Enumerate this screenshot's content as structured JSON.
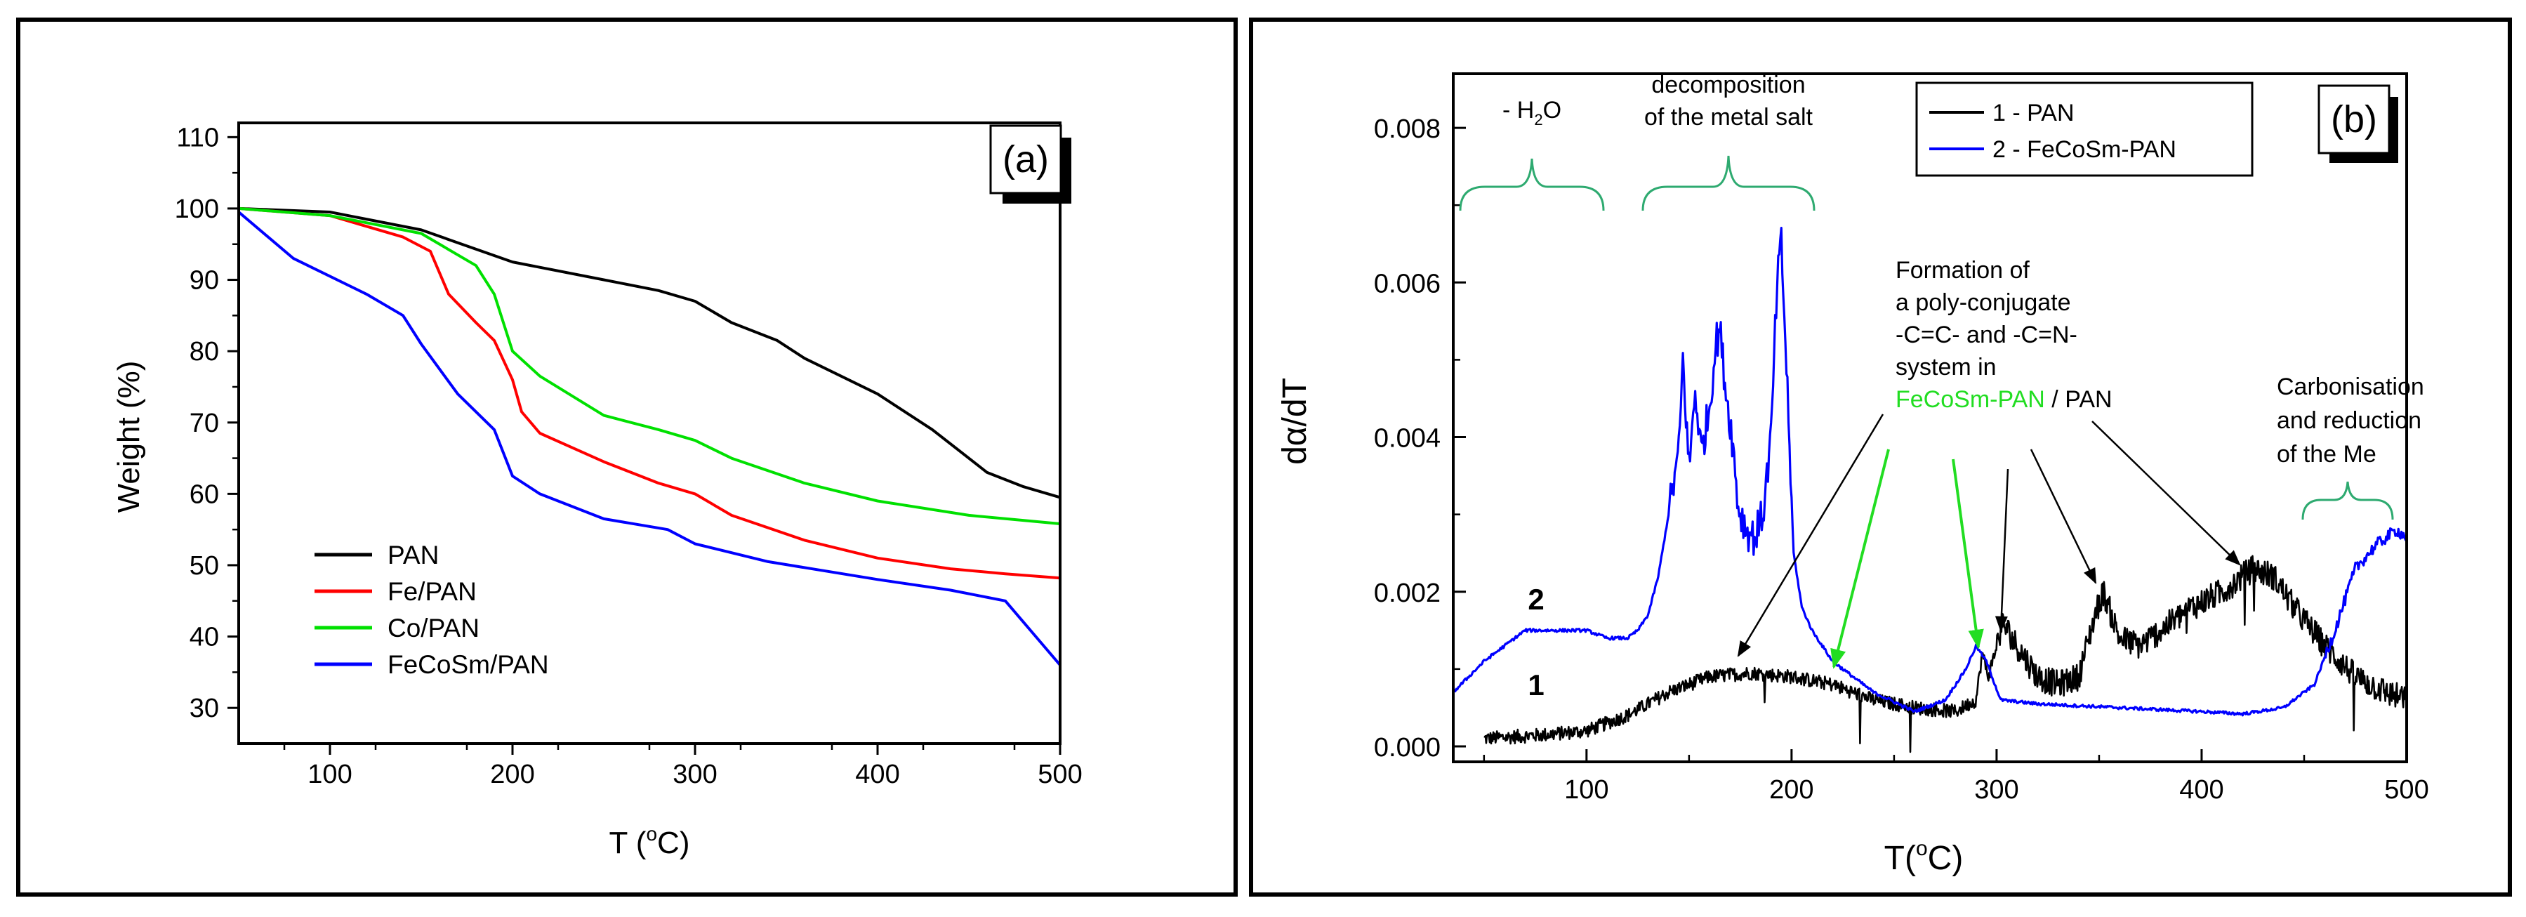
{
  "chart_data": [
    {
      "panel_label": "(a)",
      "type": "line",
      "xlabel": "T (",
      "xlabel_sup": "o",
      "xlabel_tail": "C)",
      "ylabel": "Weight (%)",
      "xlim": [
        50,
        500
      ],
      "ylim": [
        25,
        112
      ],
      "xticks": [
        "100",
        "200",
        "300",
        "400",
        "500"
      ],
      "yticks": [
        "30",
        "40",
        "50",
        "60",
        "70",
        "80",
        "90",
        "100",
        "110"
      ],
      "legend_position": "bottom-left",
      "series": [
        {
          "name": "PAN",
          "color": "#000000",
          "x": [
            50,
            100,
            150,
            200,
            250,
            280,
            300,
            320,
            345,
            360,
            400,
            430,
            460,
            480,
            500
          ],
          "y": [
            100,
            99.5,
            97,
            92.5,
            90,
            88.5,
            87,
            84,
            81.5,
            79,
            74,
            69,
            63,
            61,
            59.5
          ]
        },
        {
          "name": "Fe/PAN",
          "color": "#ff0000",
          "x": [
            50,
            100,
            140,
            155,
            165,
            180,
            190,
            200,
            205,
            215,
            250,
            280,
            300,
            320,
            360,
            400,
            440,
            470,
            500
          ],
          "y": [
            100,
            99,
            96,
            94,
            88,
            84,
            81.5,
            76,
            71.5,
            68.5,
            64.5,
            61.5,
            60,
            57,
            53.5,
            51,
            49.5,
            48.8,
            48.2
          ]
        },
        {
          "name": "Co/PAN",
          "color": "#00e000",
          "x": [
            50,
            100,
            150,
            180,
            190,
            200,
            215,
            250,
            280,
            300,
            320,
            360,
            400,
            450,
            500
          ],
          "y": [
            100,
            99,
            96.5,
            92,
            88,
            80,
            76.5,
            71,
            69,
            67.5,
            65,
            61.5,
            59,
            57,
            55.8
          ]
        },
        {
          "name": "FeCoSm/PAN",
          "color": "#0000ff",
          "x": [
            50,
            80,
            120,
            140,
            150,
            170,
            190,
            200,
            215,
            250,
            285,
            300,
            340,
            400,
            440,
            470,
            485,
            500
          ],
          "y": [
            99.5,
            93,
            88,
            85,
            81,
            74,
            69,
            62.5,
            60,
            56.5,
            55,
            53,
            50.5,
            48,
            46.5,
            45,
            40.5,
            36
          ]
        }
      ]
    },
    {
      "panel_label": "(b)",
      "type": "line",
      "xlabel": "T(",
      "xlabel_sup": "o",
      "xlabel_tail": "C)",
      "ylabel": "dα/dT",
      "xlim": [
        35,
        500
      ],
      "ylim": [
        -0.0002,
        0.0087
      ],
      "xticks": [
        "100",
        "200",
        "300",
        "400",
        "500"
      ],
      "yticks": [
        "0.000",
        "0.002",
        "0.004",
        "0.006",
        "0.008"
      ],
      "legend_position": "top-center",
      "series": [
        {
          "name": "1 - PAN",
          "color": "#000000",
          "curve_label": "1",
          "x": [
            50,
            80,
            100,
            120,
            140,
            160,
            180,
            200,
            220,
            240,
            260,
            280,
            290,
            293,
            296,
            300,
            303,
            310,
            320,
            330,
            340,
            348,
            352,
            360,
            370,
            380,
            395,
            410,
            425,
            435,
            445,
            460,
            475,
            490,
            500
          ],
          "y": [
            0.0001,
            0.00015,
            0.0002,
            0.0004,
            0.0007,
            0.0009,
            0.00095,
            0.0009,
            0.0008,
            0.0006,
            0.0005,
            0.00045,
            0.0006,
            0.0012,
            0.0009,
            0.0013,
            0.0016,
            0.0013,
            0.0009,
            0.0008,
            0.0009,
            0.0017,
            0.002,
            0.0014,
            0.0013,
            0.0015,
            0.0018,
            0.002,
            0.0023,
            0.0022,
            0.0018,
            0.0013,
            0.0009,
            0.0007,
            0.0006
          ]
        },
        {
          "name": "2 - FeCoSm-PAN",
          "color": "#0000ff",
          "curve_label": "2",
          "x": [
            35,
            50,
            70,
            90,
            100,
            110,
            120,
            125,
            130,
            135,
            140,
            145,
            147,
            150,
            153,
            156,
            160,
            163,
            165,
            168,
            171,
            174,
            178,
            182,
            186,
            190,
            193,
            195,
            198,
            201,
            205,
            210,
            220,
            240,
            260,
            275,
            285,
            290,
            295,
            302,
            320,
            360,
            400,
            420,
            440,
            455,
            465,
            475,
            485,
            495,
            500
          ],
          "y": [
            0.0007,
            0.0011,
            0.0015,
            0.0015,
            0.0015,
            0.0014,
            0.0014,
            0.0015,
            0.0017,
            0.0022,
            0.003,
            0.0038,
            0.005,
            0.0036,
            0.0046,
            0.0038,
            0.0044,
            0.0052,
            0.0054,
            0.0046,
            0.004,
            0.0031,
            0.0028,
            0.0027,
            0.003,
            0.004,
            0.006,
            0.0065,
            0.0046,
            0.0025,
            0.0018,
            0.0015,
            0.0011,
            0.0007,
            0.00045,
            0.0006,
            0.001,
            0.0013,
            0.0011,
            0.0006,
            0.00055,
            0.0005,
            0.00045,
            0.00042,
            0.0005,
            0.0008,
            0.0015,
            0.0023,
            0.0026,
            0.0028,
            0.0027
          ]
        }
      ],
      "annotations": {
        "water": {
          "prefix": "- H",
          "sub": "2",
          "suffix": "O"
        },
        "decomposition": [
          "decomposition",
          "of the metal salt"
        ],
        "formation": [
          "Formation of",
          "a poly-conjugate",
          "-C=C- and -C=N-",
          "system in"
        ],
        "formation_highlight": "FeCoSm-PAN",
        "formation_tail": " / PAN",
        "carbonisation": [
          "Carbonisation",
          "and reduction",
          "of the Me"
        ]
      }
    }
  ],
  "colors": {
    "pan": "#000000",
    "fe": "#ff0000",
    "co": "#00e000",
    "fecosm": "#0000ff",
    "bracket": "#2eaa70",
    "arrow_green": "#22dd22",
    "highlight": "#22dd22"
  }
}
